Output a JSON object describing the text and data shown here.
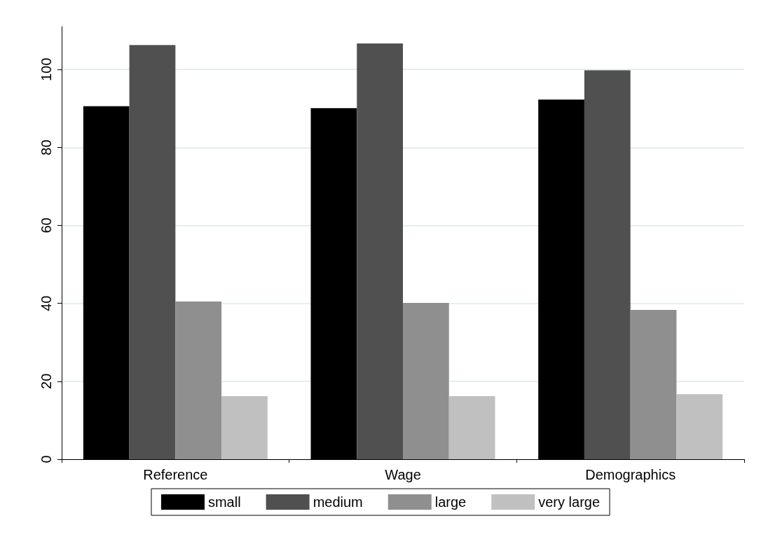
{
  "chart_data": {
    "type": "bar",
    "categories": [
      "Reference",
      "Wage",
      "Demographics"
    ],
    "series": [
      {
        "name": "small",
        "color": "#000000",
        "values": [
          90.6,
          90.1,
          92.3
        ]
      },
      {
        "name": "medium",
        "color": "#505050",
        "values": [
          106.3,
          106.7,
          99.8
        ]
      },
      {
        "name": "large",
        "color": "#8f8f8f",
        "values": [
          40.5,
          40.1,
          38.3
        ]
      },
      {
        "name": "very large",
        "color": "#c0c0c0",
        "values": [
          16.2,
          16.2,
          16.7
        ]
      }
    ],
    "ylim": [
      0,
      111
    ],
    "yticks": [
      0,
      20,
      40,
      60,
      80,
      100
    ],
    "grid": "y",
    "legend": "bottom"
  }
}
